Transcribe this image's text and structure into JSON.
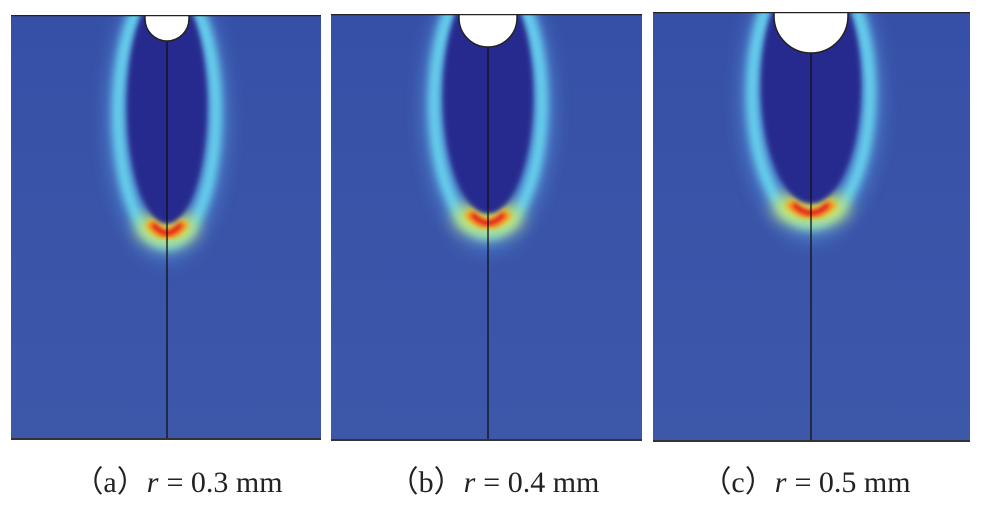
{
  "panels": [
    {
      "label": "（a）",
      "symbol": "r",
      "rest": "= 0.3 mm"
    },
    {
      "label": "（b）",
      "symbol": "r",
      "rest": "= 0.4 mm"
    },
    {
      "label": "（c）",
      "symbol": "r",
      "rest": "= 0.5 mm"
    }
  ]
}
